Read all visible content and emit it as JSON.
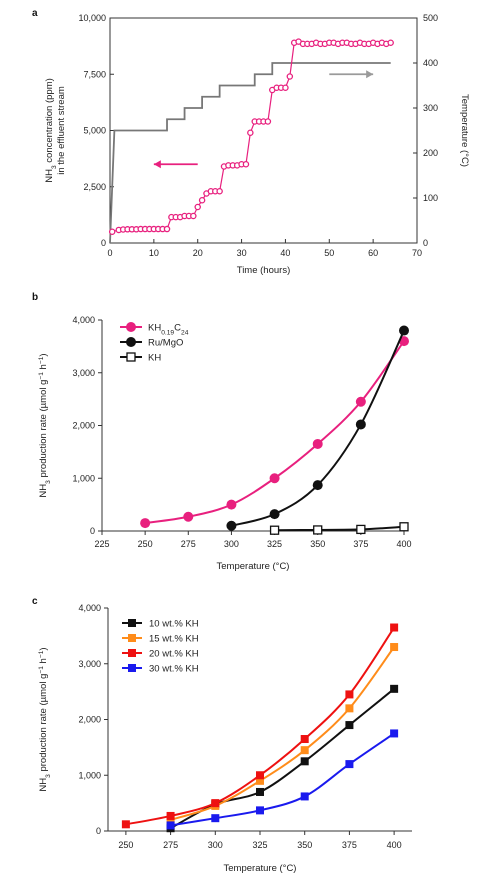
{
  "chart_data": [
    {
      "panel": "a",
      "type": "line",
      "xlabel": "Time (hours)",
      "ylabel_lines": [
        "NH3 concentration (ppm)",
        "in the effluent stream"
      ],
      "y2label": "Temperature (°C)",
      "xlim": [
        0,
        70
      ],
      "ylim": [
        0,
        10000
      ],
      "y2lim": [
        0,
        500
      ],
      "xticks": [
        0,
        10,
        20,
        30,
        40,
        50,
        60,
        70
      ],
      "yticks": [
        0,
        2500,
        5000,
        7500,
        10000
      ],
      "ytick_labels": [
        "0",
        "2,500",
        "5,000",
        "7,500",
        "10,000"
      ],
      "y2ticks": [
        0,
        100,
        200,
        300,
        400,
        500
      ],
      "series": [
        {
          "color": "#e8207e",
          "axis": "left",
          "x": [
            0.5,
            2,
            3,
            4,
            5,
            6,
            7,
            8,
            9,
            10,
            11,
            12,
            13,
            14,
            15,
            16,
            17,
            18,
            19,
            20,
            21,
            22,
            23,
            24,
            25,
            26,
            27,
            28,
            29,
            30,
            31,
            32,
            33,
            34,
            35,
            36,
            37,
            38,
            39,
            40,
            41,
            42,
            43,
            44,
            45,
            46,
            47,
            48,
            49,
            50,
            51,
            52,
            53,
            54,
            55,
            56,
            57,
            58,
            59,
            60,
            61,
            62,
            63,
            64
          ],
          "values": [
            500,
            580,
            600,
            610,
            610,
            610,
            620,
            620,
            620,
            620,
            620,
            620,
            620,
            1150,
            1150,
            1150,
            1200,
            1200,
            1200,
            1600,
            1900,
            2200,
            2300,
            2300,
            2300,
            3400,
            3450,
            3450,
            3450,
            3500,
            3500,
            4900,
            5400,
            5400,
            5400,
            5400,
            6800,
            6900,
            6900,
            6900,
            7400,
            8900,
            8950,
            8850,
            8850,
            8850,
            8900,
            8850,
            8850,
            8900,
            8900,
            8850,
            8900,
            8900,
            8850,
            8850,
            8900,
            8850,
            8850,
            8900,
            8850,
            8900,
            8850,
            8900
          ]
        },
        {
          "color": "#777777",
          "axis": "right",
          "x": [
            0,
            1,
            1,
            13,
            13,
            17,
            17,
            21,
            21,
            25,
            25,
            29,
            29,
            33,
            33,
            37,
            37,
            41,
            41,
            64
          ],
          "values": [
            0,
            250,
            250,
            250,
            275,
            275,
            300,
            300,
            325,
            325,
            350,
            350,
            350,
            350,
            375,
            375,
            400,
            400,
            400,
            400
          ]
        }
      ],
      "arrows": [
        {
          "target": "left",
          "color": "#e8207e",
          "x1": 20,
          "x2": 10,
          "y": 3500
        },
        {
          "target": "right",
          "color": "#9a9a9a",
          "x1": 50,
          "x2": 60,
          "y": 7500
        }
      ]
    },
    {
      "panel": "b",
      "type": "line",
      "xlabel": "Temperature (°C)",
      "ylabel": "NH3 production rate (µmol g−1 h−1)",
      "xlim": [
        225,
        400
      ],
      "ylim": [
        0,
        4000
      ],
      "xticks": [
        225,
        250,
        275,
        300,
        325,
        350,
        375,
        400
      ],
      "yticks": [
        0,
        1000,
        2000,
        3000,
        4000
      ],
      "ytick_labels": [
        "0",
        "1,000",
        "2,000",
        "3,000",
        "4,000"
      ],
      "legend_position": "top-left",
      "series": [
        {
          "name": "KH0.19C24",
          "color": "#e8207e",
          "marker": "circle",
          "x": [
            250,
            275,
            300,
            325,
            350,
            375,
            400
          ],
          "values": [
            150,
            270,
            500,
            1000,
            1650,
            2450,
            3600
          ]
        },
        {
          "name": "Ru/MgO",
          "color": "#111111",
          "marker": "circle",
          "x": [
            300,
            325,
            350,
            375,
            400
          ],
          "values": [
            100,
            320,
            870,
            2020,
            3800
          ]
        },
        {
          "name": "KH",
          "color": "#111111",
          "marker": "square-open",
          "x": [
            325,
            350,
            375,
            400
          ],
          "values": [
            15,
            20,
            30,
            80
          ]
        }
      ]
    },
    {
      "panel": "c",
      "type": "line",
      "xlabel": "Temperature (°C)",
      "ylabel": "NH3 production rate (µmol g−1 h−1)",
      "xlim": [
        240,
        410
      ],
      "ylim": [
        0,
        4000
      ],
      "xticks": [
        250,
        275,
        300,
        325,
        350,
        375,
        400
      ],
      "yticks": [
        0,
        1000,
        2000,
        3000,
        4000
      ],
      "ytick_labels": [
        "0",
        "1,000",
        "2,000",
        "3,000",
        "4,000"
      ],
      "legend_position": "top-left",
      "series": [
        {
          "name": "10 wt.% KH",
          "color": "#111111",
          "x": [
            275,
            300,
            325,
            350,
            375,
            400
          ],
          "values": [
            50,
            480,
            700,
            1250,
            1900,
            2550
          ]
        },
        {
          "name": "15 wt.% KH",
          "color": "#ff8c1a",
          "x": [
            275,
            300,
            325,
            350,
            375,
            400
          ],
          "values": [
            200,
            450,
            900,
            1450,
            2200,
            3300
          ]
        },
        {
          "name": "20 wt.% KH",
          "color": "#ee1111",
          "x": [
            250,
            275,
            300,
            325,
            350,
            375,
            400
          ],
          "values": [
            120,
            270,
            500,
            1000,
            1650,
            2450,
            3650
          ]
        },
        {
          "name": "30 wt.% KH",
          "color": "#1a1aee",
          "x": [
            275,
            300,
            325,
            350,
            375,
            400
          ],
          "values": [
            100,
            230,
            370,
            620,
            1200,
            1750
          ]
        }
      ]
    }
  ]
}
